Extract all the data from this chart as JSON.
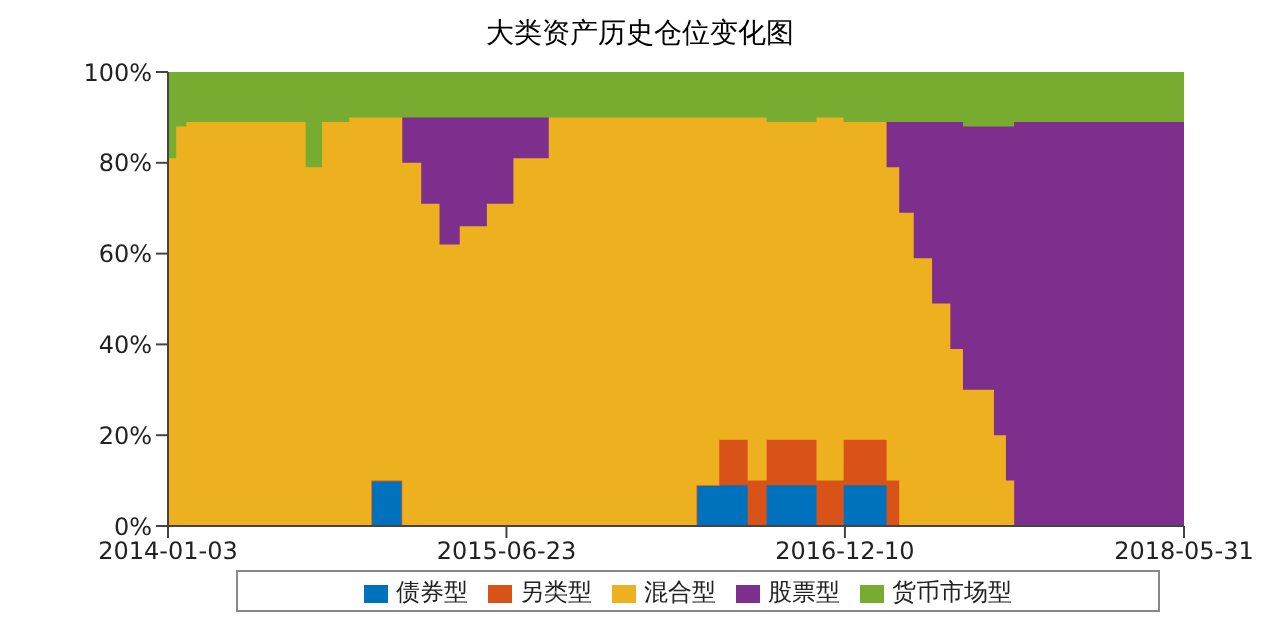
{
  "chart_data": {
    "type": "area",
    "title": "大类资产历史仓位变化图",
    "stacked": true,
    "legend": "bottom",
    "grid": false,
    "x": [
      "2014-01-03",
      "2014-01-16",
      "2014-01-16",
      "2014-02-01",
      "2014-02-01",
      "2014-08-09",
      "2014-08-09",
      "2014-09-04",
      "2014-09-04",
      "2014-10-17",
      "2014-10-17",
      "2014-11-21",
      "2014-11-21",
      "2015-01-09",
      "2015-01-09",
      "2015-02-08",
      "2015-02-08",
      "2015-03-09",
      "2015-03-09",
      "2015-04-10",
      "2015-04-10",
      "2015-05-23",
      "2015-05-23",
      "2015-07-04",
      "2015-07-04",
      "2015-08-29",
      "2015-08-29",
      "2016-04-19",
      "2016-04-19",
      "2016-05-25",
      "2016-05-25",
      "2016-07-09",
      "2016-07-09",
      "2016-08-08",
      "2016-08-08",
      "2016-10-26",
      "2016-10-26",
      "2016-12-08",
      "2016-12-08",
      "2017-02-14",
      "2017-02-14",
      "2017-03-06",
      "2017-03-06",
      "2017-03-29",
      "2017-03-29",
      "2017-04-27",
      "2017-04-27",
      "2017-05-26",
      "2017-05-26",
      "2017-06-15",
      "2017-06-15",
      "2017-08-03",
      "2017-08-03",
      "2017-08-22",
      "2017-08-22",
      "2017-09-04",
      "2017-09-04",
      "2018-05-31",
      "2018-05-31"
    ],
    "xlim": [
      "2014-01-03",
      "2018-05-31"
    ],
    "xticks": [
      "2014-01-03",
      "2015-06-23",
      "2016-12-10",
      "2018-05-31"
    ],
    "ylim": [
      0,
      100
    ],
    "yticks": [
      {
        "value": 0,
        "label": "0%"
      },
      {
        "value": 20,
        "label": "20%"
      },
      {
        "value": 40,
        "label": "40%"
      },
      {
        "value": 60,
        "label": "60%"
      },
      {
        "value": 80,
        "label": "80%"
      },
      {
        "value": 100,
        "label": "100%"
      }
    ],
    "series": [
      {
        "name": "债券型",
        "color": "#0072bd",
        "values": [
          0,
          0,
          0,
          0,
          0,
          0,
          0,
          0,
          0,
          0,
          0,
          0,
          10,
          10,
          0,
          0,
          0,
          0,
          0,
          0,
          0,
          0,
          0,
          0,
          0,
          0,
          0,
          0,
          9,
          9,
          9,
          9,
          0,
          0,
          9,
          9,
          0,
          0,
          9,
          9,
          0,
          0,
          0,
          0,
          0,
          0,
          0,
          0,
          0,
          0,
          0,
          0,
          0,
          0,
          0,
          0,
          0,
          0,
          0
        ]
      },
      {
        "name": "另类型",
        "color": "#d95319",
        "values": [
          0,
          0,
          0,
          0,
          0,
          0,
          0,
          0,
          0,
          0,
          0,
          0,
          0,
          0,
          0,
          0,
          0,
          0,
          0,
          0,
          0,
          0,
          0,
          0,
          0,
          0,
          0,
          0,
          0,
          0,
          10,
          10,
          10,
          10,
          10,
          10,
          10,
          10,
          10,
          10,
          10,
          10,
          0,
          0,
          0,
          0,
          0,
          0,
          0,
          0,
          0,
          0,
          0,
          0,
          0,
          0,
          0,
          0,
          0
        ]
      },
      {
        "name": "混合型",
        "color": "#edb120",
        "values": [
          81,
          81,
          88,
          88,
          89,
          89,
          79,
          79,
          89,
          89,
          90,
          90,
          80,
          80,
          80,
          80,
          71,
          71,
          62,
          62,
          66,
          66,
          71,
          71,
          81,
          81,
          90,
          90,
          81,
          81,
          71,
          71,
          80,
          80,
          70,
          70,
          80,
          80,
          70,
          70,
          69,
          69,
          69,
          69,
          59,
          59,
          49,
          49,
          39,
          39,
          30,
          30,
          20,
          20,
          10,
          10,
          0,
          0,
          0
        ]
      },
      {
        "name": "股票型",
        "color": "#7e2f8e",
        "values": [
          null,
          null,
          null,
          null,
          null,
          null,
          null,
          null,
          null,
          null,
          null,
          null,
          null,
          0,
          10,
          10,
          19,
          19,
          28,
          28,
          24,
          24,
          19,
          19,
          9,
          9,
          0,
          null,
          null,
          null,
          null,
          null,
          null,
          null,
          null,
          null,
          null,
          null,
          null,
          0,
          10,
          10,
          20,
          20,
          30,
          30,
          40,
          40,
          50,
          50,
          58,
          58,
          68,
          68,
          78,
          78,
          89,
          89,
          89
        ]
      },
      {
        "name": "货币市场型",
        "color": "#77ac30",
        "values": [
          19,
          19,
          12,
          12,
          11,
          11,
          21,
          21,
          11,
          11,
          10,
          10,
          10,
          10,
          10,
          10,
          10,
          10,
          10,
          10,
          10,
          10,
          10,
          10,
          10,
          10,
          10,
          10,
          10,
          10,
          10,
          10,
          10,
          10,
          11,
          11,
          10,
          10,
          11,
          11,
          11,
          11,
          11,
          11,
          11,
          11,
          11,
          11,
          11,
          11,
          12,
          12,
          12,
          12,
          12,
          12,
          11,
          11,
          11
        ]
      }
    ]
  }
}
